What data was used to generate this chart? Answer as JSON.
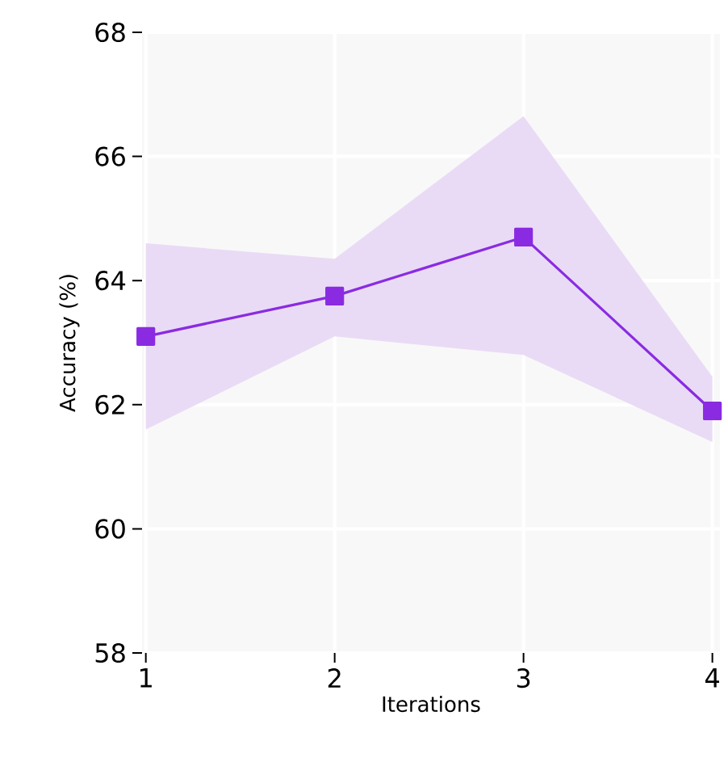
{
  "chart_data": {
    "type": "line",
    "xlabel": "Iterations",
    "ylabel": "Accuracy (%)",
    "x": [
      1,
      2,
      3,
      4
    ],
    "series": [
      {
        "color": "#8a2be2",
        "values": [
          63.1,
          63.75,
          64.7,
          61.9
        ],
        "lower": [
          61.6,
          63.1,
          62.8,
          61.4
        ],
        "upper": [
          64.6,
          64.35,
          66.65,
          62.45
        ]
      }
    ],
    "xlim": [
      0.98,
      4.04
    ],
    "ylim": [
      58,
      68
    ],
    "xticks": [
      1,
      2,
      3,
      4
    ],
    "yticks": [
      58,
      60,
      62,
      64,
      66,
      68
    ],
    "grid": true,
    "marker": "square",
    "line_style": "solid"
  }
}
